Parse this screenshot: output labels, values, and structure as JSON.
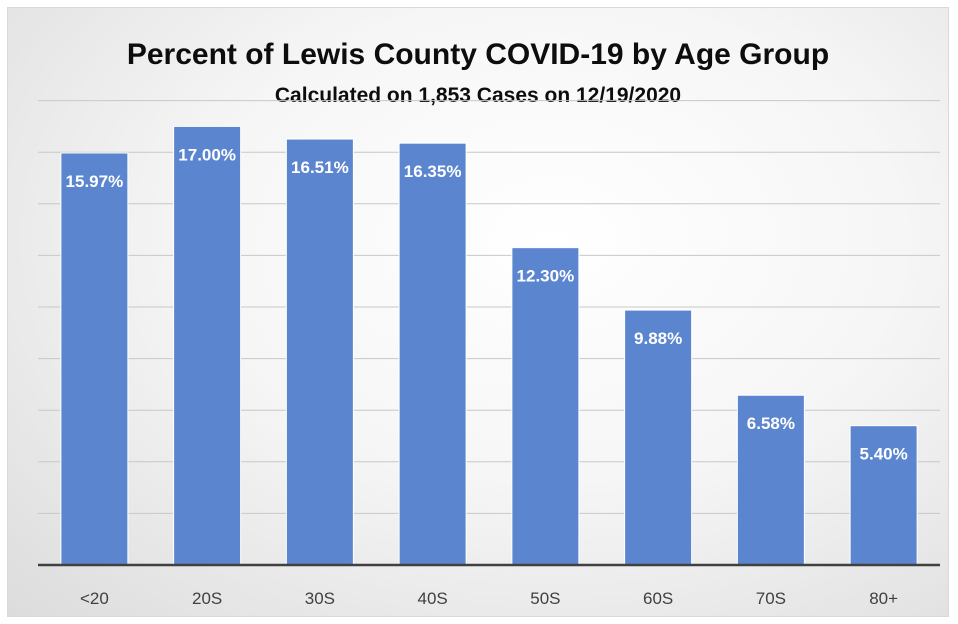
{
  "chart_data": {
    "type": "bar",
    "title": "Percent of Lewis County COVID-19 by Age Group",
    "subtitle": "Calculated on 1,853 Cases on 12/19/2020",
    "categories": [
      "<20",
      "20S",
      "30S",
      "40S",
      "50S",
      "60S",
      "70S",
      "80+"
    ],
    "values": [
      15.97,
      17.0,
      16.51,
      16.35,
      12.3,
      9.88,
      6.58,
      5.4
    ],
    "data_labels": [
      "15.97%",
      "17.00%",
      "16.51%",
      "16.35%",
      "12.30%",
      "9.88%",
      "6.58%",
      "5.40%"
    ],
    "xlabel": "",
    "ylabel": "",
    "ylim": [
      0,
      18
    ],
    "y_gridline_step": 2,
    "y_tick_labels_visible": false,
    "grid": true,
    "bar_color": "#5b86cf",
    "legend": "none"
  }
}
